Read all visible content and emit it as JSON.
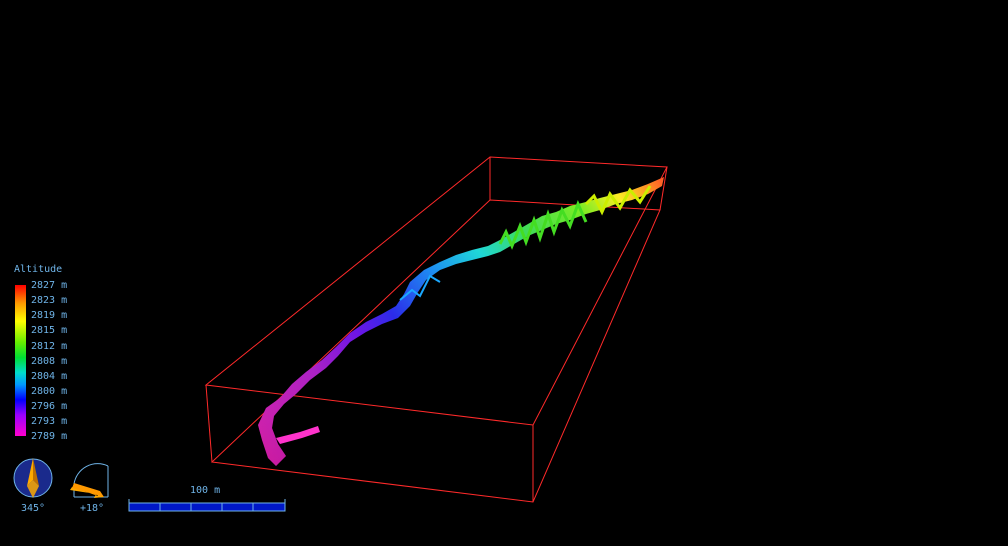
{
  "legend": {
    "title": "Altitude",
    "labels": [
      "2827 m",
      "2823 m",
      "2819 m",
      "2815 m",
      "2812 m",
      "2808 m",
      "2804 m",
      "2800 m",
      "2796 m",
      "2793 m",
      "2789 m"
    ]
  },
  "compass": {
    "heading": "345°",
    "icon": "compass-icon"
  },
  "clino": {
    "tilt": "+18°",
    "icon": "clino-icon"
  },
  "scale_bar": {
    "label": "100 m"
  },
  "colors": {
    "box": "#ff2a2a",
    "text": "#6fb4e8",
    "compass_face": "#1a2a8c",
    "compass_needle": "#ffaa00",
    "scale_bar": "#0018c8"
  }
}
